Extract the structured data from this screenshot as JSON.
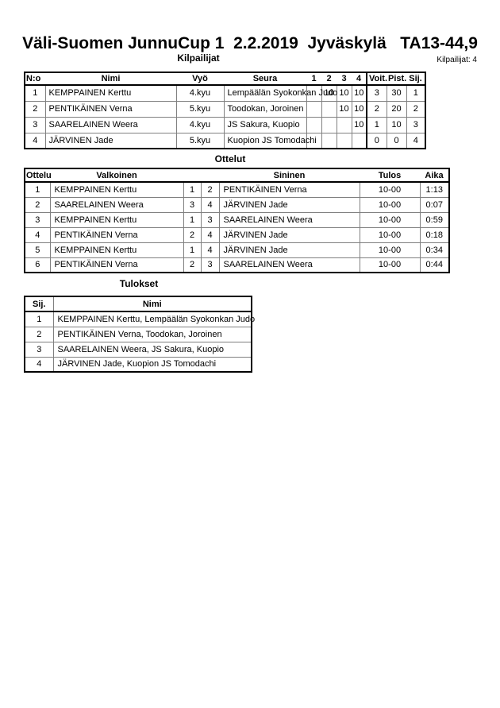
{
  "page": {
    "title": "Väli-Suomen JunnuCup 1  2.2.2019  Jyväskylä   TA13-44,9",
    "competitors_count": "Kilpailijat: 4"
  },
  "kilpailijat": {
    "section_title": "Kilpailijat",
    "headers": [
      "N:o",
      "Nimi",
      "Vyö",
      "Seura",
      "1",
      "2",
      "3",
      "4",
      "Voit.",
      "Pist.",
      "Sij."
    ],
    "rows": [
      {
        "no": "1",
        "nimi": "KEMPPAINEN Kerttu",
        "vyo": "4.kyu",
        "seura": "Lempäälän Syokonkan Judo",
        "r1": "",
        "r2": "10",
        "r3": "10",
        "r4": "10",
        "voit": "3",
        "pist": "30",
        "sij": "1"
      },
      {
        "no": "2",
        "nimi": "PENTIKÄINEN Verna",
        "vyo": "5.kyu",
        "seura": "Toodokan, Joroinen",
        "r1": "",
        "r2": "",
        "r3": "10",
        "r4": "10",
        "voit": "2",
        "pist": "20",
        "sij": "2"
      },
      {
        "no": "3",
        "nimi": "SAARELAINEN Weera",
        "vyo": "4.kyu",
        "seura": "JS Sakura, Kuopio",
        "r1": "",
        "r2": "",
        "r3": "",
        "r4": "10",
        "voit": "1",
        "pist": "10",
        "sij": "3"
      },
      {
        "no": "4",
        "nimi": "JÄRVINEN Jade",
        "vyo": "5.kyu",
        "seura": "Kuopion JS Tomodachi",
        "r1": "",
        "r2": "",
        "r3": "",
        "r4": "",
        "voit": "0",
        "pist": "0",
        "sij": "4"
      }
    ]
  },
  "ottelut": {
    "section_title": "Ottelut",
    "headers": [
      "Ottelu",
      "Valkoinen",
      "",
      "",
      "Sininen",
      "Tulos",
      "Aika"
    ],
    "rows": [
      {
        "ottelu": "1",
        "valkoinen": "KEMPPAINEN Kerttu",
        "wnum": "1",
        "bnum": "2",
        "sininen": "PENTIKÄINEN Verna",
        "tulos": "10-00",
        "aika": "1:13"
      },
      {
        "ottelu": "2",
        "valkoinen": "SAARELAINEN Weera",
        "wnum": "3",
        "bnum": "4",
        "sininen": "JÄRVINEN Jade",
        "tulos": "10-00",
        "aika": "0:07"
      },
      {
        "ottelu": "3",
        "valkoinen": "KEMPPAINEN Kerttu",
        "wnum": "1",
        "bnum": "3",
        "sininen": "SAARELAINEN Weera",
        "tulos": "10-00",
        "aika": "0:59"
      },
      {
        "ottelu": "4",
        "valkoinen": "PENTIKÄINEN Verna",
        "wnum": "2",
        "bnum": "4",
        "sininen": "JÄRVINEN Jade",
        "tulos": "10-00",
        "aika": "0:18"
      },
      {
        "ottelu": "5",
        "valkoinen": "KEMPPAINEN Kerttu",
        "wnum": "1",
        "bnum": "4",
        "sininen": "JÄRVINEN Jade",
        "tulos": "10-00",
        "aika": "0:34"
      },
      {
        "ottelu": "6",
        "valkoinen": "PENTIKÄINEN Verna",
        "wnum": "2",
        "bnum": "3",
        "sininen": "SAARELAINEN Weera",
        "tulos": "10-00",
        "aika": "0:44"
      }
    ]
  },
  "tulokset": {
    "section_title": "Tulokset",
    "headers": [
      "Sij.",
      "Nimi"
    ],
    "rows": [
      {
        "sij": "1",
        "nimi": "KEMPPAINEN Kerttu, Lempäälän Syokonkan Judo"
      },
      {
        "sij": "2",
        "nimi": "PENTIKÄINEN Verna, Toodokan, Joroinen"
      },
      {
        "sij": "3",
        "nimi": "SAARELAINEN Weera, JS Sakura, Kuopio"
      },
      {
        "sij": "4",
        "nimi": "JÄRVINEN Jade, Kuopion JS Tomodachi"
      }
    ]
  }
}
